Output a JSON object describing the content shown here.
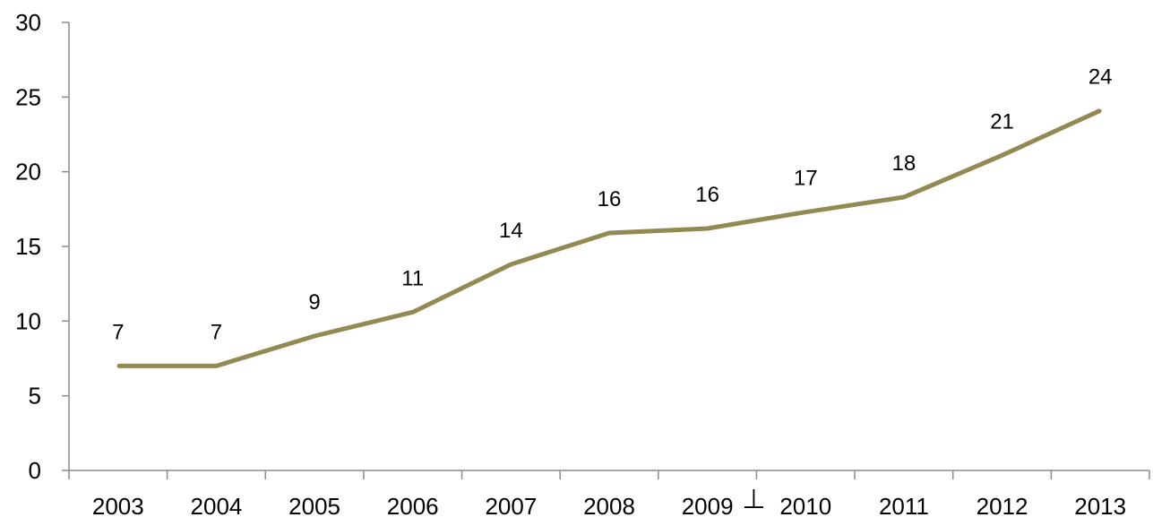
{
  "chart_data": {
    "type": "line",
    "title": "",
    "xlabel": "",
    "ylabel": "",
    "categories": [
      "2003",
      "2004",
      "2005",
      "2006",
      "2007",
      "2008",
      "2009",
      "2010",
      "2011",
      "2012",
      "2013"
    ],
    "series": [
      {
        "values": [
          7,
          7,
          9,
          10.6,
          13.8,
          15.9,
          16.2,
          17.3,
          18.3,
          21.1,
          24.1
        ],
        "labels": [
          "7",
          "7",
          "9",
          "11",
          "14",
          "16",
          "16",
          "17",
          "18",
          "21",
          "24"
        ],
        "color": "#938953"
      }
    ],
    "ylim": [
      0,
      30
    ],
    "yticks": [
      "0",
      "5",
      "10",
      "15",
      "20",
      "25",
      "30"
    ],
    "grid": false,
    "legend": "none",
    "annotations": [
      {
        "text": "⊥",
        "near_category": "2009"
      }
    ],
    "axis_color": "#8c8c8c"
  }
}
